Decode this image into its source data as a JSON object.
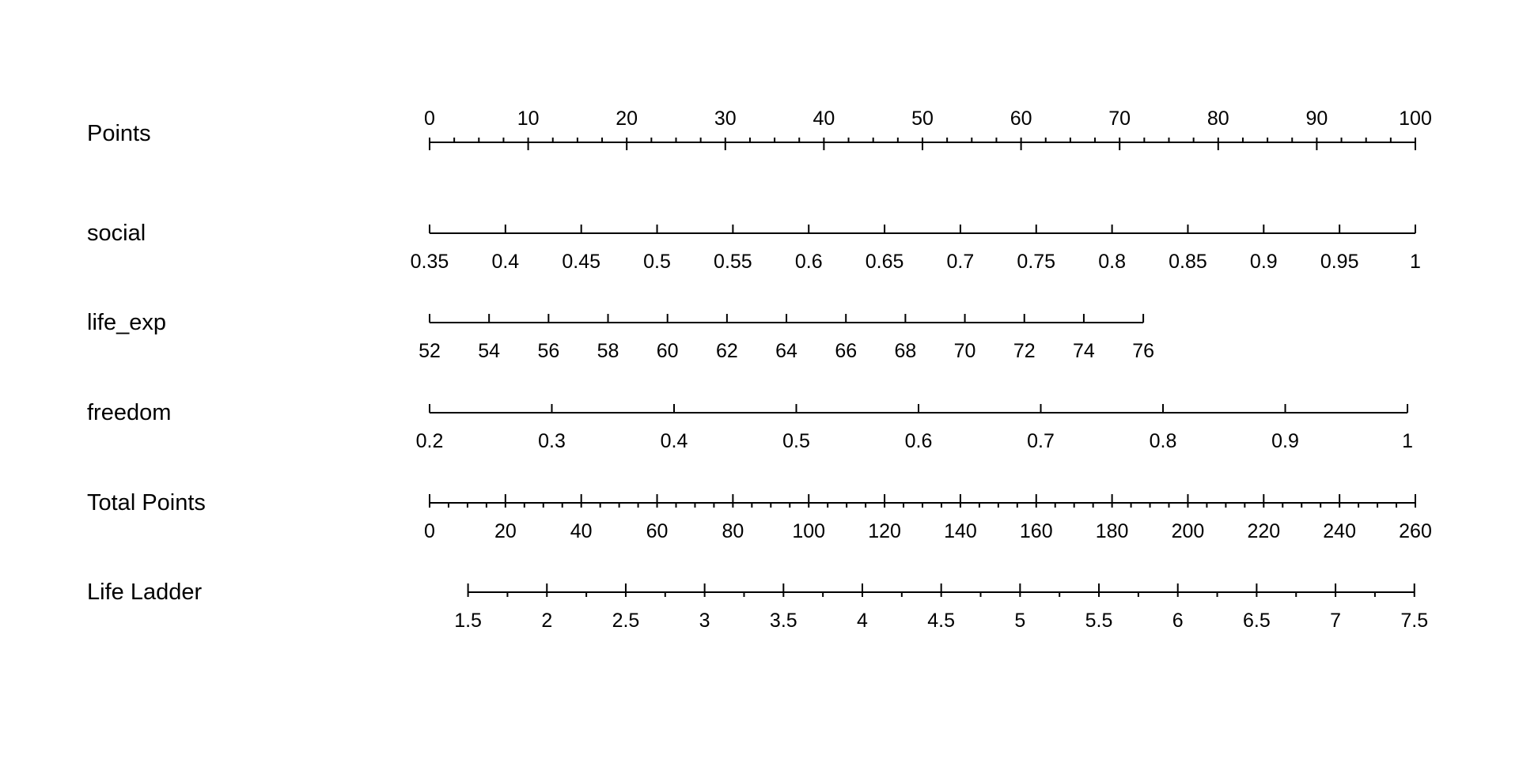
{
  "chart_data": {
    "type": "nomogram",
    "grid": false,
    "rows": [
      {
        "name": "Points",
        "label": "Points",
        "range": [
          0,
          100
        ],
        "points_range": [
          0,
          100
        ],
        "major_ticks": [
          "0",
          "10",
          "20",
          "30",
          "40",
          "50",
          "60",
          "70",
          "80",
          "90",
          "100"
        ],
        "minor_step": 2.5,
        "labels_position": "above"
      },
      {
        "name": "social",
        "label": "social",
        "range": [
          0.35,
          1
        ],
        "points_range": [
          0,
          100
        ],
        "major_ticks": [
          "0.35",
          "0.4",
          "0.45",
          "0.5",
          "0.55",
          "0.6",
          "0.65",
          "0.7",
          "0.75",
          "0.8",
          "0.85",
          "0.9",
          "0.95",
          "1"
        ],
        "labels_position": "below"
      },
      {
        "name": "life_exp",
        "label": "life_exp",
        "range": [
          52,
          76
        ],
        "points_range": [
          0,
          72.4
        ],
        "major_ticks": [
          "52",
          "54",
          "56",
          "58",
          "60",
          "62",
          "64",
          "66",
          "68",
          "70",
          "72",
          "74",
          "76"
        ],
        "labels_position": "below"
      },
      {
        "name": "freedom",
        "label": "freedom",
        "range": [
          0.2,
          1
        ],
        "points_range": [
          0,
          99.2
        ],
        "major_ticks": [
          "0.2",
          "0.3",
          "0.4",
          "0.5",
          "0.6",
          "0.7",
          "0.8",
          "0.9",
          "1"
        ],
        "labels_position": "below"
      },
      {
        "name": "total-points",
        "label": "Total Points",
        "range": [
          0,
          260
        ],
        "points_range": [
          0,
          100
        ],
        "major_ticks": [
          "0",
          "20",
          "40",
          "60",
          "80",
          "100",
          "120",
          "140",
          "160",
          "180",
          "200",
          "220",
          "240",
          "260"
        ],
        "minor_step": 5,
        "labels_position": "below"
      },
      {
        "name": "life-ladder",
        "label": "Life Ladder",
        "range": [
          1.5,
          7.5
        ],
        "points_range": [
          3.9,
          99.9
        ],
        "major_ticks": [
          "1.5",
          "2",
          "2.5",
          "3",
          "3.5",
          "4",
          "4.5",
          "5",
          "5.5",
          "6",
          "6.5",
          "7",
          "7.5"
        ],
        "minor_step": 0.25,
        "labels_position": "below"
      }
    ]
  }
}
